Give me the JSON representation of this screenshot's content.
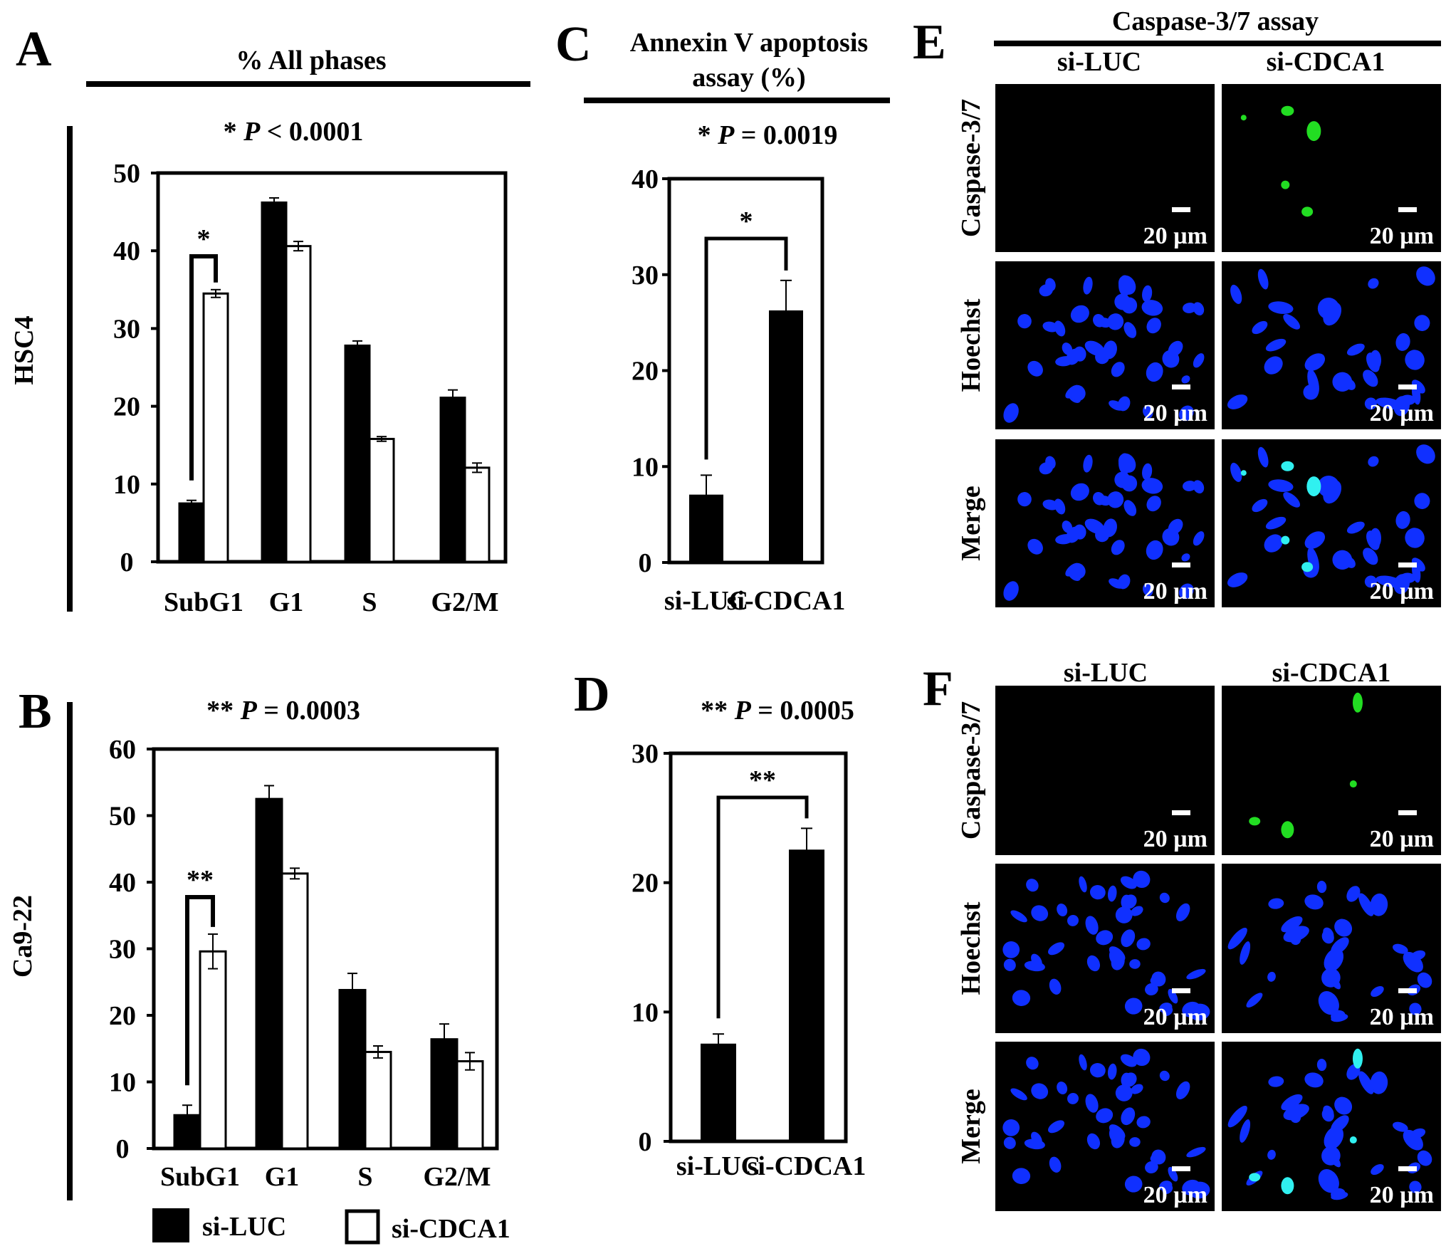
{
  "panels": {
    "A": {
      "letter": "A",
      "header": "% All phases",
      "p_prefix": "* ",
      "p_label": "P",
      "p_rest": " < 0.0001",
      "side_label": "HSC4",
      "sig": "*"
    },
    "B": {
      "letter": "B",
      "p_prefix": "** ",
      "p_label": "P",
      "p_rest": " = 0.0003",
      "side_label": "Ca9-22",
      "sig": "**"
    },
    "C": {
      "letter": "C",
      "header_line1": "Annexin V apoptosis",
      "header_line2": "assay (%)",
      "p_prefix": "* ",
      "p_label": "P",
      "p_rest": " = 0.0019",
      "sig": "*"
    },
    "D": {
      "letter": "D",
      "p_prefix": "** ",
      "p_label": "P",
      "p_rest": " = 0.0005",
      "sig": "**"
    },
    "E": {
      "letter": "E",
      "header": "Caspase-3/7 assay",
      "col1": "si-LUC",
      "col2": "si-CDCA1",
      "rows": [
        "Caspase-3/7",
        "Hoechst",
        "Merge"
      ],
      "scale": "20 µm"
    },
    "F": {
      "letter": "F",
      "col1": "si-LUC",
      "col2": "si-CDCA1",
      "rows": [
        "Caspase-3/7",
        "Hoechst",
        "Merge"
      ],
      "scale": "20 µm"
    }
  },
  "legend": {
    "items": [
      {
        "label": "si-LUC",
        "color": "#000000"
      },
      {
        "label": "si-CDCA1",
        "color": "#ffffff"
      }
    ]
  },
  "colors": {
    "bar_luc": "#000000",
    "bar_cdca1": "#ffffff",
    "hoechst": "#1030ff",
    "caspase": "#22dd22",
    "merge_overlap": "#30f0f0",
    "image_bg": "#000000"
  },
  "chart_data": [
    {
      "panel": "A",
      "type": "bar",
      "categories": [
        "SubG1",
        "G1",
        "S",
        "G2/M"
      ],
      "series": [
        {
          "name": "si-LUC",
          "values": [
            7.5,
            46.2,
            27.8,
            21.1
          ],
          "errors": [
            0.4,
            0.6,
            0.6,
            1.0
          ]
        },
        {
          "name": "si-CDCA1",
          "values": [
            34.5,
            40.6,
            15.8,
            12.1
          ],
          "errors": [
            0.5,
            0.6,
            0.3,
            0.6
          ]
        }
      ],
      "ylim": [
        0,
        50
      ],
      "yticks": [
        0,
        10,
        20,
        30,
        40,
        50
      ]
    },
    {
      "panel": "B",
      "type": "bar",
      "categories": [
        "SubG1",
        "G1",
        "S",
        "G2/M"
      ],
      "series": [
        {
          "name": "si-LUC",
          "values": [
            5.0,
            52.5,
            23.8,
            16.4
          ],
          "errors": [
            1.5,
            2.0,
            2.5,
            2.3
          ]
        },
        {
          "name": "si-CDCA1",
          "values": [
            29.6,
            41.3,
            14.5,
            13.1
          ],
          "errors": [
            2.6,
            0.8,
            0.9,
            1.3
          ]
        }
      ],
      "ylim": [
        0,
        60
      ],
      "yticks": [
        0,
        10,
        20,
        30,
        40,
        50,
        60
      ]
    },
    {
      "panel": "C",
      "type": "bar",
      "categories": [
        "si-LUC",
        "si-CDCA1"
      ],
      "series": [
        {
          "name": "",
          "values": [
            7.0,
            26.2
          ],
          "errors": [
            2.1,
            3.2
          ]
        }
      ],
      "ylim": [
        0,
        40
      ],
      "yticks": [
        0,
        10,
        20,
        30,
        40
      ]
    },
    {
      "panel": "D",
      "type": "bar",
      "categories": [
        "si-LUC",
        "si-CDCA1"
      ],
      "series": [
        {
          "name": "",
          "values": [
            7.5,
            22.5
          ],
          "errors": [
            0.8,
            1.7
          ]
        }
      ],
      "ylim": [
        0,
        30
      ],
      "yticks": [
        0,
        10,
        20,
        30
      ]
    }
  ]
}
